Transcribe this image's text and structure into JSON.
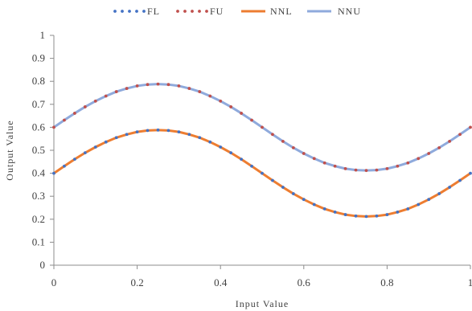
{
  "chart_data": {
    "type": "line",
    "title": "",
    "xlabel": "Input Value",
    "ylabel": "Output Value",
    "xlim": [
      0,
      1
    ],
    "ylim": [
      0,
      1
    ],
    "x_ticks": [
      0,
      0.2,
      0.4,
      0.6,
      0.8,
      1
    ],
    "x_tick_labels": [
      "0",
      "0.2",
      "0.4",
      "0.6",
      "0.8",
      "1"
    ],
    "y_ticks": [
      0,
      0.1,
      0.2,
      0.3,
      0.4,
      0.5,
      0.6,
      0.7,
      0.8,
      0.9,
      1
    ],
    "y_tick_labels": [
      "0",
      "0.1",
      "0.2",
      "0.3",
      "0.4",
      "0.5",
      "0.6",
      "0.7",
      "0.8",
      "0.9",
      "1"
    ],
    "grid": false,
    "legend_position": "top-center",
    "x": [
      0,
      0.025,
      0.05,
      0.075,
      0.1,
      0.125,
      0.15,
      0.175,
      0.2,
      0.225,
      0.25,
      0.275,
      0.3,
      0.325,
      0.35,
      0.375,
      0.4,
      0.425,
      0.45,
      0.475,
      0.5,
      0.525,
      0.55,
      0.575,
      0.6,
      0.625,
      0.65,
      0.675,
      0.7,
      0.725,
      0.75,
      0.775,
      0.8,
      0.825,
      0.85,
      0.875,
      0.9,
      0.925,
      0.95,
      0.975,
      1
    ],
    "series": [
      {
        "name": "FL",
        "style": "dotted",
        "color": "#4472C4",
        "values": [
          0.4,
          0.431,
          0.461,
          0.489,
          0.514,
          0.536,
          0.555,
          0.569,
          0.58,
          0.586,
          0.588,
          0.586,
          0.58,
          0.569,
          0.555,
          0.536,
          0.514,
          0.489,
          0.461,
          0.431,
          0.4,
          0.369,
          0.339,
          0.311,
          0.286,
          0.264,
          0.245,
          0.231,
          0.22,
          0.214,
          0.212,
          0.214,
          0.22,
          0.231,
          0.245,
          0.264,
          0.286,
          0.311,
          0.339,
          0.369,
          0.4
        ]
      },
      {
        "name": "FU",
        "style": "dotted",
        "color": "#C0504D",
        "values": [
          0.6,
          0.631,
          0.661,
          0.689,
          0.714,
          0.736,
          0.755,
          0.769,
          0.78,
          0.786,
          0.788,
          0.786,
          0.78,
          0.769,
          0.755,
          0.736,
          0.714,
          0.689,
          0.661,
          0.631,
          0.6,
          0.569,
          0.539,
          0.511,
          0.486,
          0.464,
          0.445,
          0.431,
          0.42,
          0.414,
          0.412,
          0.414,
          0.42,
          0.431,
          0.445,
          0.464,
          0.486,
          0.511,
          0.539,
          0.569,
          0.6
        ]
      },
      {
        "name": "NNL",
        "style": "solid",
        "color": "#ED7D31",
        "values": [
          0.4,
          0.431,
          0.461,
          0.489,
          0.514,
          0.536,
          0.555,
          0.569,
          0.58,
          0.586,
          0.588,
          0.586,
          0.58,
          0.569,
          0.555,
          0.536,
          0.514,
          0.489,
          0.461,
          0.431,
          0.4,
          0.369,
          0.339,
          0.311,
          0.286,
          0.264,
          0.245,
          0.231,
          0.22,
          0.214,
          0.212,
          0.214,
          0.22,
          0.231,
          0.245,
          0.264,
          0.286,
          0.311,
          0.339,
          0.369,
          0.4
        ]
      },
      {
        "name": "NNU",
        "style": "solid",
        "color": "#8FAADC",
        "values": [
          0.6,
          0.631,
          0.661,
          0.689,
          0.714,
          0.736,
          0.755,
          0.769,
          0.78,
          0.786,
          0.788,
          0.786,
          0.78,
          0.769,
          0.755,
          0.736,
          0.714,
          0.689,
          0.661,
          0.631,
          0.6,
          0.569,
          0.539,
          0.511,
          0.486,
          0.464,
          0.445,
          0.431,
          0.42,
          0.414,
          0.412,
          0.414,
          0.42,
          0.431,
          0.445,
          0.464,
          0.486,
          0.511,
          0.539,
          0.569,
          0.6
        ]
      }
    ]
  }
}
